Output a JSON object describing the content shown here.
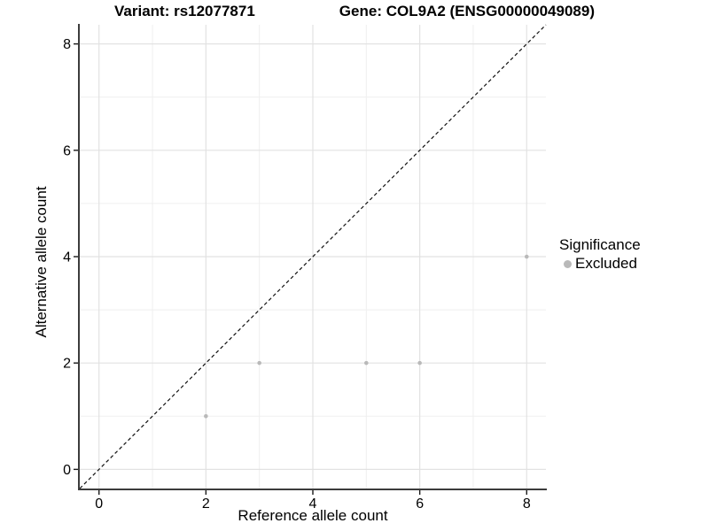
{
  "title": {
    "variant": "Variant: rs12077871",
    "gene": "Gene: COL9A2 (ENSG00000049089)"
  },
  "chart_data": {
    "type": "scatter",
    "xlabel": "Reference allele count",
    "ylabel": "Alternative allele count",
    "xlim": [
      -0.36,
      8.36
    ],
    "ylim": [
      -0.36,
      8.36
    ],
    "xticks": [
      0,
      2,
      4,
      6,
      8
    ],
    "yticks": [
      0,
      2,
      4,
      6,
      8
    ],
    "minor_ticks": [
      1,
      3,
      5,
      7
    ],
    "grid": true,
    "identity_line": {
      "style": "dashed",
      "color": "#111111",
      "comment": "y = x reference line from panel corner to corner"
    },
    "series": [
      {
        "name": "Excluded",
        "color": "#b9b9b9",
        "points": [
          [
            2,
            1
          ],
          [
            3,
            2
          ],
          [
            5,
            2
          ],
          [
            6,
            2
          ],
          [
            8,
            4
          ]
        ]
      }
    ],
    "legend": {
      "position": "right",
      "title": "Significance",
      "items": [
        {
          "label": "Excluded",
          "color": "#b9b9b9"
        }
      ]
    }
  },
  "colors": {
    "background": "#ffffff",
    "grid_major": "#e2e2e2",
    "grid_minor": "#efefef",
    "axis_line": "#3c3c3c",
    "tick": "#1a1a1a",
    "text": "#000000",
    "point": "#b9b9b9"
  }
}
